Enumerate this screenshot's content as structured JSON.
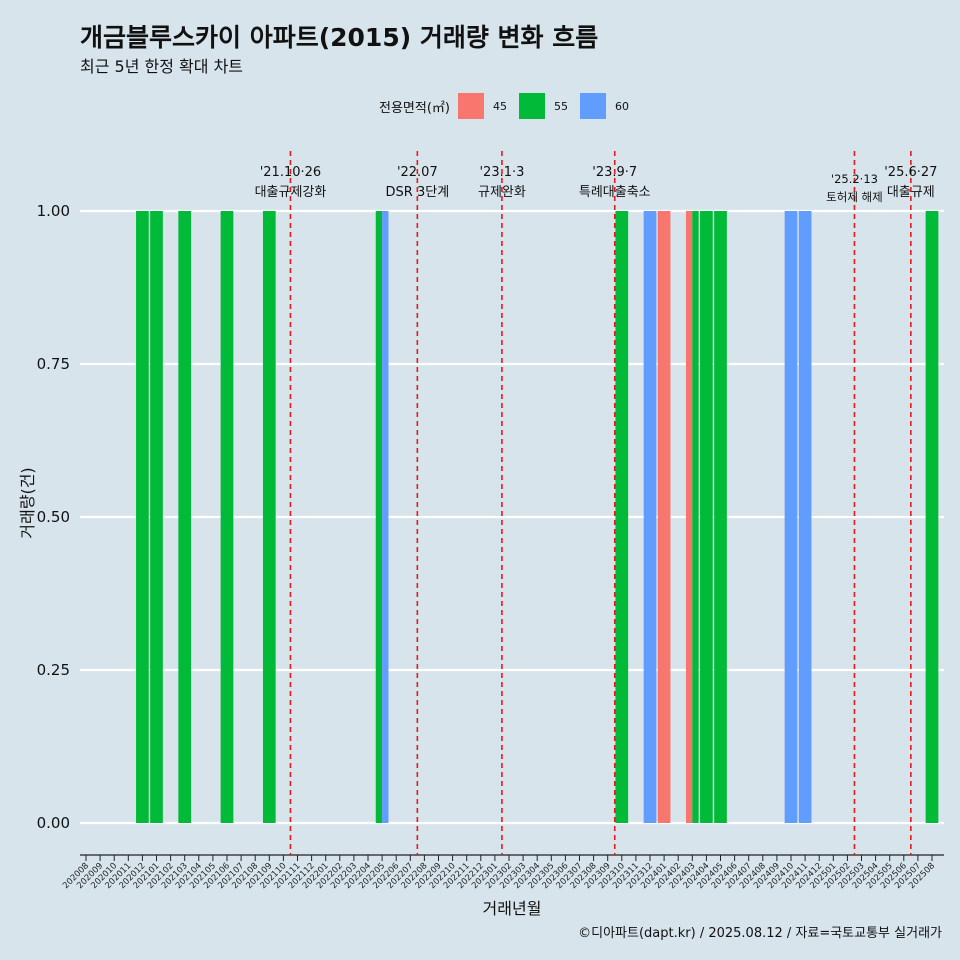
{
  "chart_data": {
    "type": "bar",
    "title": "개금블루스카이 아파트(2015) 거래량 변화 흐름",
    "subtitle": "최근 5년 한정 확대 차트",
    "xlabel": "거래년월",
    "ylabel": "거래량(건)",
    "ylim": [
      0,
      1
    ],
    "yticks": [
      "0.00",
      "0.25",
      "0.50",
      "0.75",
      "1.00"
    ],
    "legend_title": "전용면적(㎡)",
    "legend_position": "top",
    "grid": "horizontal",
    "categories": [
      "202008",
      "202009",
      "202010",
      "202011",
      "202012",
      "202101",
      "202102",
      "202103",
      "202104",
      "202105",
      "202106",
      "202107",
      "202108",
      "202109",
      "202110",
      "202111",
      "202112",
      "202201",
      "202202",
      "202203",
      "202204",
      "202205",
      "202206",
      "202207",
      "202208",
      "202209",
      "202210",
      "202211",
      "202212",
      "202301",
      "202302",
      "202303",
      "202304",
      "202305",
      "202306",
      "202307",
      "202308",
      "202309",
      "202310",
      "202311",
      "202312",
      "202401",
      "202402",
      "202403",
      "202404",
      "202405",
      "202406",
      "202407",
      "202408",
      "202409",
      "202410",
      "202411",
      "202412",
      "202501",
      "202502",
      "202503",
      "202504",
      "202505",
      "202506",
      "202507",
      "202508"
    ],
    "series": [
      {
        "name": "45",
        "color": "#f8766d",
        "values": [
          0,
          0,
          0,
          0,
          0,
          0,
          0,
          0,
          0,
          0,
          0,
          0,
          0,
          0,
          0,
          0,
          0,
          0,
          0,
          0,
          0,
          0,
          0,
          0,
          0,
          0,
          0,
          0,
          0,
          0,
          0,
          0,
          0,
          0,
          0,
          0,
          0,
          0,
          0,
          0,
          0,
          1,
          0,
          1,
          0,
          0,
          0,
          0,
          0,
          0,
          0,
          0,
          0,
          0,
          0,
          0,
          0,
          0,
          0,
          0,
          0
        ]
      },
      {
        "name": "55",
        "color": "#00ba38",
        "values": [
          0,
          0,
          0,
          0,
          1,
          1,
          0,
          1,
          0,
          0,
          1,
          0,
          0,
          1,
          0,
          0,
          0,
          0,
          0,
          0,
          0,
          1,
          0,
          0,
          0,
          0,
          0,
          0,
          0,
          0,
          0,
          0,
          0,
          0,
          0,
          0,
          0,
          0,
          1,
          0,
          0,
          0,
          0,
          1,
          1,
          1,
          0,
          0,
          0,
          0,
          0,
          0,
          0,
          0,
          0,
          0,
          0,
          0,
          0,
          0,
          1
        ]
      },
      {
        "name": "60",
        "color": "#619cff",
        "values": [
          0,
          0,
          0,
          0,
          0,
          0,
          0,
          0,
          0,
          0,
          0,
          0,
          0,
          0,
          0,
          0,
          0,
          0,
          0,
          0,
          0,
          1,
          0,
          0,
          0,
          0,
          0,
          0,
          0,
          0,
          0,
          0,
          0,
          0,
          0,
          0,
          0,
          0,
          0,
          0,
          1,
          0,
          0,
          0,
          0,
          0,
          0,
          0,
          0,
          0,
          1,
          1,
          0,
          0,
          0,
          0,
          0,
          0,
          0,
          0,
          0
        ]
      }
    ],
    "annotations": [
      {
        "x": 14.5,
        "date": "'21.10·26",
        "label": "대출규제강화"
      },
      {
        "x": 23.5,
        "date": "'22.07",
        "label": "DSR 3단계"
      },
      {
        "x": 29.5,
        "date": "'23.1·3",
        "label": "규제완화"
      },
      {
        "x": 37.5,
        "date": "'23.9·7",
        "label": "특례대출축소"
      },
      {
        "x": 54.5,
        "date": "'25.2·13",
        "label": "토허제 해제"
      },
      {
        "x": 58.5,
        "date": "'25.6·27",
        "label": "대출규제"
      }
    ],
    "caption": "©디아파트(dapt.kr) / 2025.08.12 / 자료=국토교통부 실거래가"
  }
}
